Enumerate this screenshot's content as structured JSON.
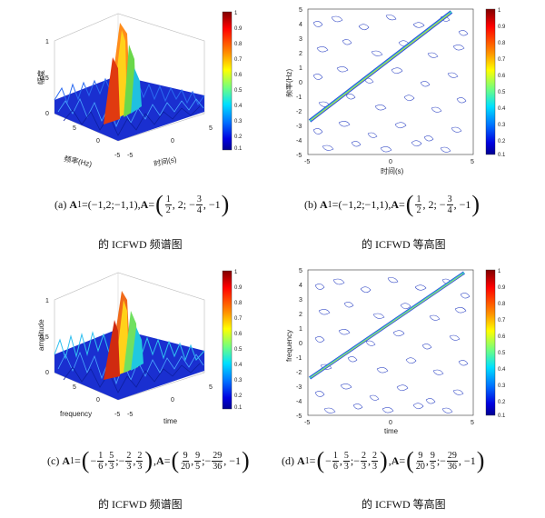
{
  "colorbar": {
    "ticks": [
      "1",
      "0.9",
      "0.8",
      "0.7",
      "0.6",
      "0.5",
      "0.4",
      "0.3",
      "0.2",
      "0.1"
    ],
    "colors": [
      "#7f0000",
      "#ff0000",
      "#ff8000",
      "#ffff00",
      "#80ff80",
      "#00ffff",
      "#0080ff",
      "#0000ff",
      "#00008f"
    ]
  },
  "panels": {
    "a": {
      "ylabel": "幅度",
      "xlabel_left": "频率(Hz)",
      "xlabel_right": "时间(s)",
      "ticks_z": [
        "1",
        "0.5",
        "0"
      ],
      "ticks_freq": [
        "5",
        "0",
        "-5"
      ],
      "ticks_time": [
        "-5",
        "0",
        "5"
      ]
    },
    "b": {
      "ylabel": "频率(Hz)",
      "xlabel": "时间(s)",
      "yticks": [
        "5",
        "4",
        "3",
        "2",
        "1",
        "0",
        "-1",
        "-2",
        "-3",
        "-4",
        "-5"
      ],
      "xticks": [
        "-5",
        "0",
        "5"
      ]
    },
    "c": {
      "ylabel": "amplitude",
      "xlabel_left": "frequency",
      "xlabel_right": "time",
      "ticks_z": [
        "1",
        "0.5",
        "0"
      ],
      "ticks_freq": [
        "5",
        "0",
        "-5"
      ],
      "ticks_time": [
        "-5",
        "0",
        "5"
      ]
    },
    "d": {
      "ylabel": "frequency",
      "xlabel": "time",
      "yticks": [
        "5",
        "4",
        "3",
        "2",
        "1",
        "0",
        "-1",
        "-2",
        "-3",
        "-4",
        "-5"
      ],
      "xticks": [
        "-5",
        "0",
        "5"
      ]
    }
  },
  "formulas": {
    "a": {
      "label": "(a)",
      "a1": "(−1,2;−1,1)",
      "a_lead": "1",
      "a_lead_den": "2",
      "a_mid": ", 2; −",
      "a_frac2_num": "3",
      "a_frac2_den": "4",
      "a_tail": ", −1"
    },
    "b": {
      "label": "(b)",
      "a1": "(−1,2;−1,1)",
      "a_lead": "1",
      "a_lead_den": "2",
      "a_mid": ", 2; −",
      "a_frac2_num": "3",
      "a_frac2_den": "4",
      "a_tail": ", −1"
    },
    "c": {
      "label": "(c)",
      "f1n": "1",
      "f1d": "6",
      "f2n": "5",
      "f2d": "3",
      "f3n": "2",
      "f3d": "3",
      "f4n": "2",
      "f4d": "3",
      "g1n": "9",
      "g1d": "20",
      "g2n": "9",
      "g2d": "5",
      "g3n": "29",
      "g3d": "36",
      "tail": ", −1"
    },
    "d": {
      "label": "(d)",
      "f1n": "1",
      "f1d": "6",
      "f2n": "5",
      "f2d": "3",
      "f3n": "2",
      "f3d": "3",
      "f4n": "2",
      "f4d": "3",
      "g1n": "9",
      "g1d": "20",
      "g2n": "9",
      "g2d": "5",
      "g3n": "29",
      "g3d": "36",
      "tail": ", −1"
    }
  },
  "captions": {
    "a": "的 ICFWD 频谱图",
    "b": "的 ICFWD 等高图",
    "c": "的 ICFWD 频谱图",
    "d": "的 ICFWD 等高图"
  },
  "symbols": {
    "A1": "A",
    "A1_sub": "1",
    "A": "A",
    "eq": " = ",
    "comma": ", "
  }
}
